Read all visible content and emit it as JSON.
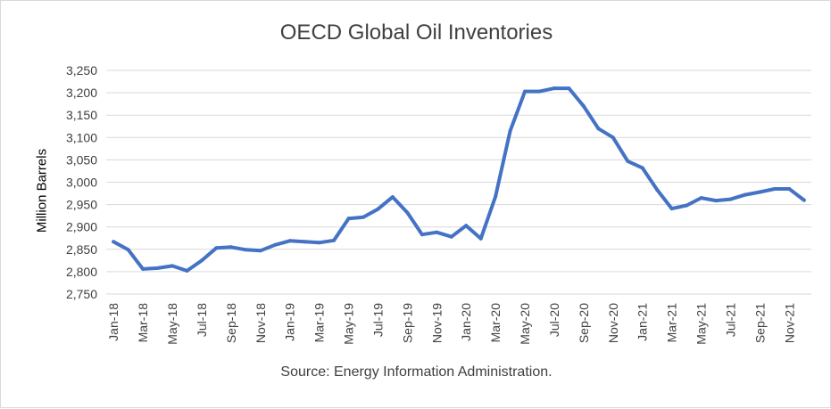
{
  "chart_data": {
    "type": "line",
    "title": "OECD Global Oil Inventories",
    "ylabel": "Million Barrels",
    "xlabel": "",
    "source": "Source: Energy Information Administration.",
    "ylim": [
      2750,
      3250
    ],
    "ytick_step": 50,
    "yticks": [
      "2,750",
      "2,800",
      "2,850",
      "2,900",
      "2,950",
      "3,000",
      "3,050",
      "3,100",
      "3,150",
      "3,200",
      "3,250"
    ],
    "grid": true,
    "legend": "none",
    "line_color": "#4472c4",
    "x": [
      "Jan-18",
      "Feb-18",
      "Mar-18",
      "Apr-18",
      "May-18",
      "Jun-18",
      "Jul-18",
      "Aug-18",
      "Sep-18",
      "Oct-18",
      "Nov-18",
      "Dec-18",
      "Jan-19",
      "Feb-19",
      "Mar-19",
      "Apr-19",
      "May-19",
      "Jun-19",
      "Jul-19",
      "Aug-19",
      "Sep-19",
      "Oct-19",
      "Nov-19",
      "Dec-19",
      "Jan-20",
      "Feb-20",
      "Mar-20",
      "Apr-20",
      "May-20",
      "Jun-20",
      "Jul-20",
      "Aug-20",
      "Sep-20",
      "Oct-20",
      "Nov-20",
      "Dec-20",
      "Jan-21",
      "Feb-21",
      "Mar-21",
      "Apr-21",
      "May-21",
      "Jun-21",
      "Jul-21",
      "Aug-21",
      "Sep-21",
      "Oct-21",
      "Nov-21",
      "Dec-21"
    ],
    "xtick_labels": [
      "Jan-18",
      "Mar-18",
      "May-18",
      "Jul-18",
      "Sep-18",
      "Nov-18",
      "Jan-19",
      "Mar-19",
      "May-19",
      "Jul-19",
      "Sep-19",
      "Nov-19",
      "Jan-20",
      "Mar-20",
      "May-20",
      "Jul-20",
      "Sep-20",
      "Nov-20",
      "Jan-21",
      "Mar-21",
      "May-21",
      "Jul-21",
      "Sep-21",
      "Nov-21"
    ],
    "series": [
      {
        "values": [
          2867,
          2849,
          2806,
          2808,
          2813,
          2802,
          2825,
          2853,
          2855,
          2849,
          2847,
          2860,
          2869,
          2867,
          2865,
          2870,
          2919,
          2922,
          2940,
          2967,
          2932,
          2883,
          2888,
          2878,
          2903,
          2874,
          2968,
          3115,
          3203,
          3203,
          3210,
          3210,
          3170,
          3120,
          3100,
          3047,
          3032,
          2983,
          2941,
          2948,
          2965,
          2959,
          2962,
          2972,
          2978,
          2985,
          2985,
          2960
        ]
      }
    ]
  }
}
